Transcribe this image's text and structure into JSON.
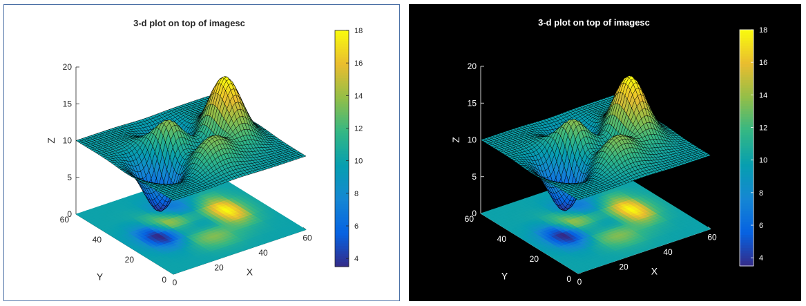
{
  "panels": [
    {
      "theme": "light",
      "background": "#ffffff",
      "foreground": "#262626",
      "frame": "#4a6fa5"
    },
    {
      "theme": "dark",
      "background": "#000000",
      "foreground": "#ffffff",
      "frame": "#000000"
    }
  ],
  "chart_data": [
    {
      "type": "surface",
      "title": "3-d plot on top of imagesc",
      "xlabel": "X",
      "ylabel": "Y",
      "zlabel": "Z",
      "xlim": [
        0,
        60
      ],
      "ylim": [
        0,
        60
      ],
      "zlim": [
        0,
        20
      ],
      "xticks": [
        "0",
        "20",
        "40",
        "60"
      ],
      "yticks": [
        "0",
        "20",
        "40",
        "60"
      ],
      "zticks": [
        "0",
        "5",
        "10",
        "15",
        "20"
      ],
      "surface_offset": 10,
      "colormap": "parula",
      "colorbar": {
        "ticks": [
          "4",
          "6",
          "8",
          "10",
          "12",
          "14",
          "16",
          "18"
        ],
        "limits": [
          3.5,
          18
        ]
      }
    },
    {
      "type": "surface",
      "title": "3-d plot on top of imagesc",
      "xlabel": "X",
      "ylabel": "Y",
      "zlabel": "Z",
      "xlim": [
        0,
        60
      ],
      "ylim": [
        0,
        60
      ],
      "zlim": [
        0,
        20
      ],
      "xticks": [
        "0",
        "20",
        "40",
        "60"
      ],
      "yticks": [
        "0",
        "20",
        "40",
        "60"
      ],
      "zticks": [
        "0",
        "5",
        "10",
        "15",
        "20"
      ],
      "surface_offset": 10,
      "colormap": "parula",
      "colorbar": {
        "ticks": [
          "4",
          "6",
          "8",
          "10",
          "12",
          "14",
          "16",
          "18"
        ],
        "limits": [
          3.5,
          18
        ]
      }
    }
  ]
}
